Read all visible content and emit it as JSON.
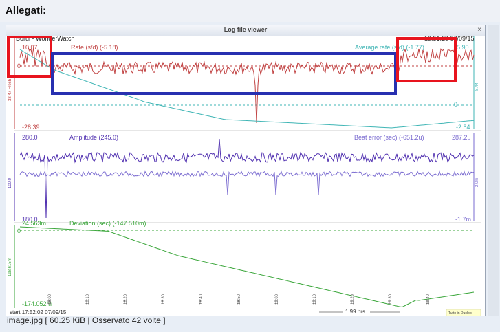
{
  "page": {
    "title": "Allegati:"
  },
  "viewer": {
    "title": "Log file viewer",
    "app_name": "Borui - WonderWatch",
    "datetime": "19:51:29 07/09/15",
    "panels": {
      "rate": {
        "label": "Rate (s/d) (-5.18)",
        "avg_label": "Average rate (s/d) (-1.77)",
        "y_top": "10.07",
        "y_zero": "0",
        "y_bottom": "-28.39",
        "right_top": "5.90",
        "right_zero": "0",
        "right_bottom": "-2.54",
        "side_label_left": "38.47 Fresh",
        "side_label_right": "8.44"
      },
      "amplitude": {
        "label": "Amplitude (245.0)",
        "beat_label": "Beat error (sec) (-651.2u)",
        "y_top": "280.0",
        "y_bottom": "180.0",
        "right_top": "287.2u",
        "right_bottom": "-1.7m",
        "side_label_left": "100.0",
        "side_label_right": "2.0m"
      },
      "deviation": {
        "label": "Deviation (sec) (-147.510m)",
        "y_top": "24.563m",
        "y_zero": "0",
        "y_bottom": "-174.052m",
        "side_label_left": "198.615m"
      }
    },
    "x_ticks": [
      "18:00",
      "18:10",
      "18:20",
      "18:30",
      "18:40",
      "18:50",
      "19:00",
      "19:10",
      "19:20",
      "19:30",
      "19:40"
    ],
    "start_label": "start 17:52:02 07/09/15",
    "span_label": "1.99 hrs",
    "corner_label": "Tutto in Duolop"
  },
  "attachment": {
    "filename": "image.jpg",
    "info": "[ 60.25 KiB | Osservato 42 volte ]"
  },
  "colors": {
    "rate": "#c04040",
    "average": "#3fb5b5",
    "amplitude": "#5030b0",
    "beat": "#7a6bd0",
    "deviation": "#3aa63a",
    "highlight_red": "#e8141e",
    "highlight_blue": "#2830b0"
  },
  "chart_data": [
    {
      "type": "line",
      "title": "Rate (s/d) (-5.18)",
      "series": [
        {
          "name": "Rate (s/d) (-5.18)"
        },
        {
          "name": "Average rate (s/d) (-1.77)"
        }
      ],
      "ylim": [
        -28.39,
        10.07
      ]
    },
    {
      "type": "line",
      "title": "Amplitude (245.0)",
      "series": [
        {
          "name": "Amplitude (245.0)"
        },
        {
          "name": "Beat error (sec) (-651.2u)"
        }
      ],
      "ylim": [
        180.0,
        280.0
      ]
    },
    {
      "type": "line",
      "title": "Deviation (sec) (-147.510m)",
      "series": [
        {
          "name": "Deviation (sec) (-147.510m)"
        }
      ]
    }
  ]
}
